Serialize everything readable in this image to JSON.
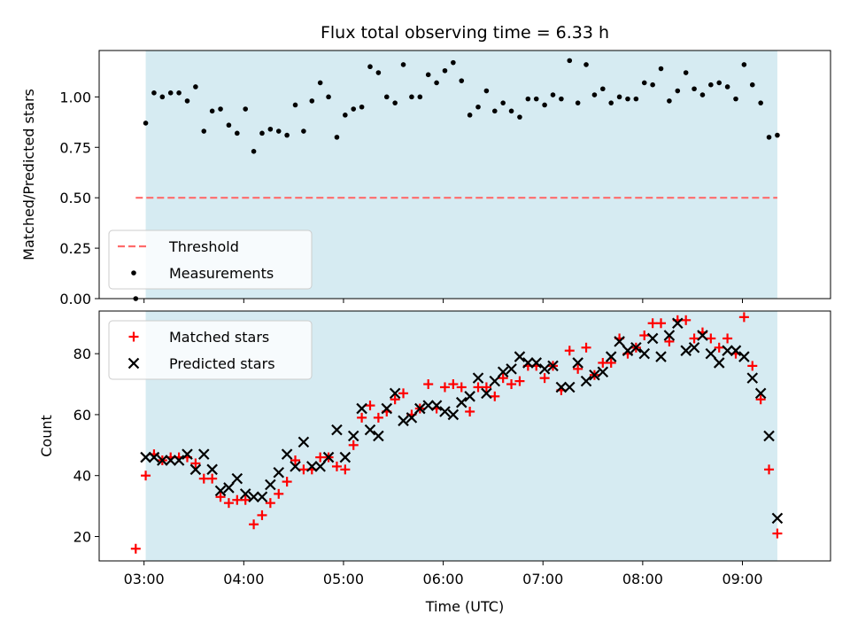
{
  "title": "Flux total observing time = 6.33 h",
  "colors": {
    "background_band": "#add8e6",
    "threshold": "#ff6b6b",
    "measurement": "#000000",
    "matched": "#ff0000",
    "predicted": "#000000"
  },
  "chart_data": [
    {
      "type": "scatter",
      "ylabel": "Matched/Predicted stars",
      "ylim": [
        0,
        1.23
      ],
      "xlim": [
        "02:33",
        "09:53"
      ],
      "yticks": [
        "0.00",
        "0.25",
        "0.50",
        "0.75",
        "1.00"
      ],
      "shaded_span": [
        "03:01",
        "09:21"
      ],
      "legend": {
        "placement": "lower-left",
        "entries": [
          "Threshold",
          "Measurements"
        ]
      },
      "threshold": {
        "name": "Threshold",
        "value": 0.5,
        "x_range": [
          "02:55",
          "09:21"
        ]
      },
      "series": [
        {
          "name": "Measurements",
          "marker": "dot",
          "points": [
            [
              "02:55",
              0.0
            ],
            [
              "03:01",
              0.87
            ],
            [
              "03:06",
              1.02
            ],
            [
              "03:11",
              1.0
            ],
            [
              "03:16",
              1.02
            ],
            [
              "03:21",
              1.02
            ],
            [
              "03:26",
              0.98
            ],
            [
              "03:31",
              1.05
            ],
            [
              "03:36",
              0.83
            ],
            [
              "03:41",
              0.93
            ],
            [
              "03:46",
              0.94
            ],
            [
              "03:51",
              0.86
            ],
            [
              "03:56",
              0.82
            ],
            [
              "04:01",
              0.94
            ],
            [
              "04:06",
              0.73
            ],
            [
              "04:11",
              0.82
            ],
            [
              "04:16",
              0.84
            ],
            [
              "04:21",
              0.83
            ],
            [
              "04:26",
              0.81
            ],
            [
              "04:31",
              0.96
            ],
            [
              "04:36",
              0.83
            ],
            [
              "04:41",
              0.98
            ],
            [
              "04:46",
              1.07
            ],
            [
              "04:51",
              1.0
            ],
            [
              "04:56",
              0.8
            ],
            [
              "05:01",
              0.91
            ],
            [
              "05:06",
              0.94
            ],
            [
              "05:11",
              0.95
            ],
            [
              "05:16",
              1.15
            ],
            [
              "05:21",
              1.12
            ],
            [
              "05:26",
              1.0
            ],
            [
              "05:31",
              0.97
            ],
            [
              "05:36",
              1.16
            ],
            [
              "05:41",
              1.0
            ],
            [
              "05:46",
              1.0
            ],
            [
              "05:51",
              1.11
            ],
            [
              "05:56",
              1.07
            ],
            [
              "06:01",
              1.13
            ],
            [
              "06:06",
              1.17
            ],
            [
              "06:11",
              1.08
            ],
            [
              "06:16",
              0.91
            ],
            [
              "06:21",
              0.95
            ],
            [
              "06:26",
              1.03
            ],
            [
              "06:31",
              0.93
            ],
            [
              "06:36",
              0.97
            ],
            [
              "06:41",
              0.93
            ],
            [
              "06:46",
              0.9
            ],
            [
              "06:51",
              0.99
            ],
            [
              "06:56",
              0.99
            ],
            [
              "07:01",
              0.96
            ],
            [
              "07:06",
              1.01
            ],
            [
              "07:11",
              0.99
            ],
            [
              "07:16",
              1.18
            ],
            [
              "07:21",
              0.97
            ],
            [
              "07:26",
              1.16
            ],
            [
              "07:31",
              1.01
            ],
            [
              "07:36",
              1.04
            ],
            [
              "07:41",
              0.97
            ],
            [
              "07:46",
              1.0
            ],
            [
              "07:51",
              0.99
            ],
            [
              "07:56",
              0.99
            ],
            [
              "08:01",
              1.07
            ],
            [
              "08:06",
              1.06
            ],
            [
              "08:11",
              1.14
            ],
            [
              "08:16",
              0.98
            ],
            [
              "08:21",
              1.03
            ],
            [
              "08:26",
              1.12
            ],
            [
              "08:31",
              1.04
            ],
            [
              "08:36",
              1.01
            ],
            [
              "08:41",
              1.06
            ],
            [
              "08:46",
              1.07
            ],
            [
              "08:51",
              1.05
            ],
            [
              "08:56",
              0.99
            ],
            [
              "09:01",
              1.16
            ],
            [
              "09:06",
              1.06
            ],
            [
              "09:11",
              0.97
            ],
            [
              "09:16",
              0.8
            ],
            [
              "09:21",
              0.81
            ]
          ]
        }
      ]
    },
    {
      "type": "scatter",
      "xlabel": "Time (UTC)",
      "ylabel": "Count",
      "ylim": [
        12,
        94
      ],
      "xlim": [
        "02:33",
        "09:53"
      ],
      "yticks": [
        "20",
        "40",
        "60",
        "80"
      ],
      "xticks": [
        "03:00",
        "04:00",
        "05:00",
        "06:00",
        "07:00",
        "08:00",
        "09:00"
      ],
      "shaded_span": [
        "03:01",
        "09:21"
      ],
      "legend": {
        "placement": "top-left",
        "entries": [
          "Matched stars",
          "Predicted stars"
        ]
      },
      "series": [
        {
          "name": "Matched stars",
          "marker": "plus",
          "points": [
            [
              "02:55",
              16
            ],
            [
              "03:01",
              40
            ],
            [
              "03:06",
              47
            ],
            [
              "03:11",
              45
            ],
            [
              "03:16",
              46
            ],
            [
              "03:21",
              46
            ],
            [
              "03:26",
              46
            ],
            [
              "03:31",
              44
            ],
            [
              "03:36",
              39
            ],
            [
              "03:41",
              39
            ],
            [
              "03:46",
              33
            ],
            [
              "03:51",
              31
            ],
            [
              "03:56",
              32
            ],
            [
              "04:01",
              32
            ],
            [
              "04:06",
              24
            ],
            [
              "04:11",
              27
            ],
            [
              "04:16",
              31
            ],
            [
              "04:21",
              34
            ],
            [
              "04:26",
              38
            ],
            [
              "04:31",
              45
            ],
            [
              "04:36",
              42
            ],
            [
              "04:41",
              42
            ],
            [
              "04:46",
              46
            ],
            [
              "04:51",
              46
            ],
            [
              "04:56",
              43
            ],
            [
              "05:01",
              42
            ],
            [
              "05:06",
              50
            ],
            [
              "05:11",
              59
            ],
            [
              "05:16",
              63
            ],
            [
              "05:21",
              59
            ],
            [
              "05:26",
              61
            ],
            [
              "05:31",
              65
            ],
            [
              "05:36",
              67
            ],
            [
              "05:41",
              60
            ],
            [
              "05:46",
              62
            ],
            [
              "05:51",
              70
            ],
            [
              "05:56",
              62
            ],
            [
              "06:01",
              69
            ],
            [
              "06:06",
              70
            ],
            [
              "06:11",
              69
            ],
            [
              "06:16",
              61
            ],
            [
              "06:21",
              69
            ],
            [
              "06:26",
              69
            ],
            [
              "06:31",
              66
            ],
            [
              "06:36",
              72
            ],
            [
              "06:41",
              70
            ],
            [
              "06:46",
              71
            ],
            [
              "06:51",
              76
            ],
            [
              "06:56",
              76
            ],
            [
              "07:01",
              72
            ],
            [
              "07:06",
              76
            ],
            [
              "07:11",
              68
            ],
            [
              "07:16",
              81
            ],
            [
              "07:21",
              75
            ],
            [
              "07:26",
              82
            ],
            [
              "07:31",
              73
            ],
            [
              "07:36",
              77
            ],
            [
              "07:41",
              77
            ],
            [
              "07:46",
              85
            ],
            [
              "07:51",
              80
            ],
            [
              "07:56",
              82
            ],
            [
              "08:01",
              86
            ],
            [
              "08:06",
              90
            ],
            [
              "08:11",
              90
            ],
            [
              "08:16",
              84
            ],
            [
              "08:21",
              91
            ],
            [
              "08:26",
              91
            ],
            [
              "08:31",
              85
            ],
            [
              "08:36",
              87
            ],
            [
              "08:41",
              85
            ],
            [
              "08:46",
              82
            ],
            [
              "08:51",
              85
            ],
            [
              "08:56",
              80
            ],
            [
              "09:01",
              92
            ],
            [
              "09:06",
              76
            ],
            [
              "09:11",
              65
            ],
            [
              "09:16",
              42
            ],
            [
              "09:21",
              21
            ]
          ]
        },
        {
          "name": "Predicted stars",
          "marker": "x",
          "points": [
            [
              "03:01",
              46
            ],
            [
              "03:06",
              46
            ],
            [
              "03:11",
              45
            ],
            [
              "03:16",
              45
            ],
            [
              "03:21",
              45
            ],
            [
              "03:26",
              47
            ],
            [
              "03:31",
              42
            ],
            [
              "03:36",
              47
            ],
            [
              "03:41",
              42
            ],
            [
              "03:46",
              35
            ],
            [
              "03:51",
              36
            ],
            [
              "03:56",
              39
            ],
            [
              "04:01",
              34
            ],
            [
              "04:06",
              33
            ],
            [
              "04:11",
              33
            ],
            [
              "04:16",
              37
            ],
            [
              "04:21",
              41
            ],
            [
              "04:26",
              47
            ],
            [
              "04:31",
              43
            ],
            [
              "04:36",
              51
            ],
            [
              "04:41",
              43
            ],
            [
              "04:46",
              43
            ],
            [
              "04:51",
              46
            ],
            [
              "04:56",
              55
            ],
            [
              "05:01",
              46
            ],
            [
              "05:06",
              53
            ],
            [
              "05:11",
              62
            ],
            [
              "05:16",
              55
            ],
            [
              "05:21",
              53
            ],
            [
              "05:26",
              62
            ],
            [
              "05:31",
              67
            ],
            [
              "05:36",
              58
            ],
            [
              "05:41",
              59
            ],
            [
              "05:46",
              62
            ],
            [
              "05:51",
              63
            ],
            [
              "05:56",
              63
            ],
            [
              "06:01",
              61
            ],
            [
              "06:06",
              60
            ],
            [
              "06:11",
              64
            ],
            [
              "06:16",
              66
            ],
            [
              "06:21",
              72
            ],
            [
              "06:26",
              67
            ],
            [
              "06:31",
              71
            ],
            [
              "06:36",
              74
            ],
            [
              "06:41",
              75
            ],
            [
              "06:46",
              79
            ],
            [
              "06:51",
              77
            ],
            [
              "06:56",
              77
            ],
            [
              "07:01",
              75
            ],
            [
              "07:06",
              76
            ],
            [
              "07:11",
              69
            ],
            [
              "07:16",
              69
            ],
            [
              "07:21",
              77
            ],
            [
              "07:26",
              71
            ],
            [
              "07:31",
              73
            ],
            [
              "07:36",
              74
            ],
            [
              "07:41",
              79
            ],
            [
              "07:46",
              84
            ],
            [
              "07:51",
              81
            ],
            [
              "07:56",
              82
            ],
            [
              "08:01",
              80
            ],
            [
              "08:06",
              85
            ],
            [
              "08:11",
              79
            ],
            [
              "08:16",
              86
            ],
            [
              "08:21",
              90
            ],
            [
              "08:26",
              81
            ],
            [
              "08:31",
              82
            ],
            [
              "08:36",
              86
            ],
            [
              "08:41",
              80
            ],
            [
              "08:46",
              77
            ],
            [
              "08:51",
              81
            ],
            [
              "08:56",
              81
            ],
            [
              "09:01",
              79
            ],
            [
              "09:06",
              72
            ],
            [
              "09:11",
              67
            ],
            [
              "09:16",
              53
            ],
            [
              "09:21",
              26
            ]
          ]
        }
      ]
    }
  ]
}
